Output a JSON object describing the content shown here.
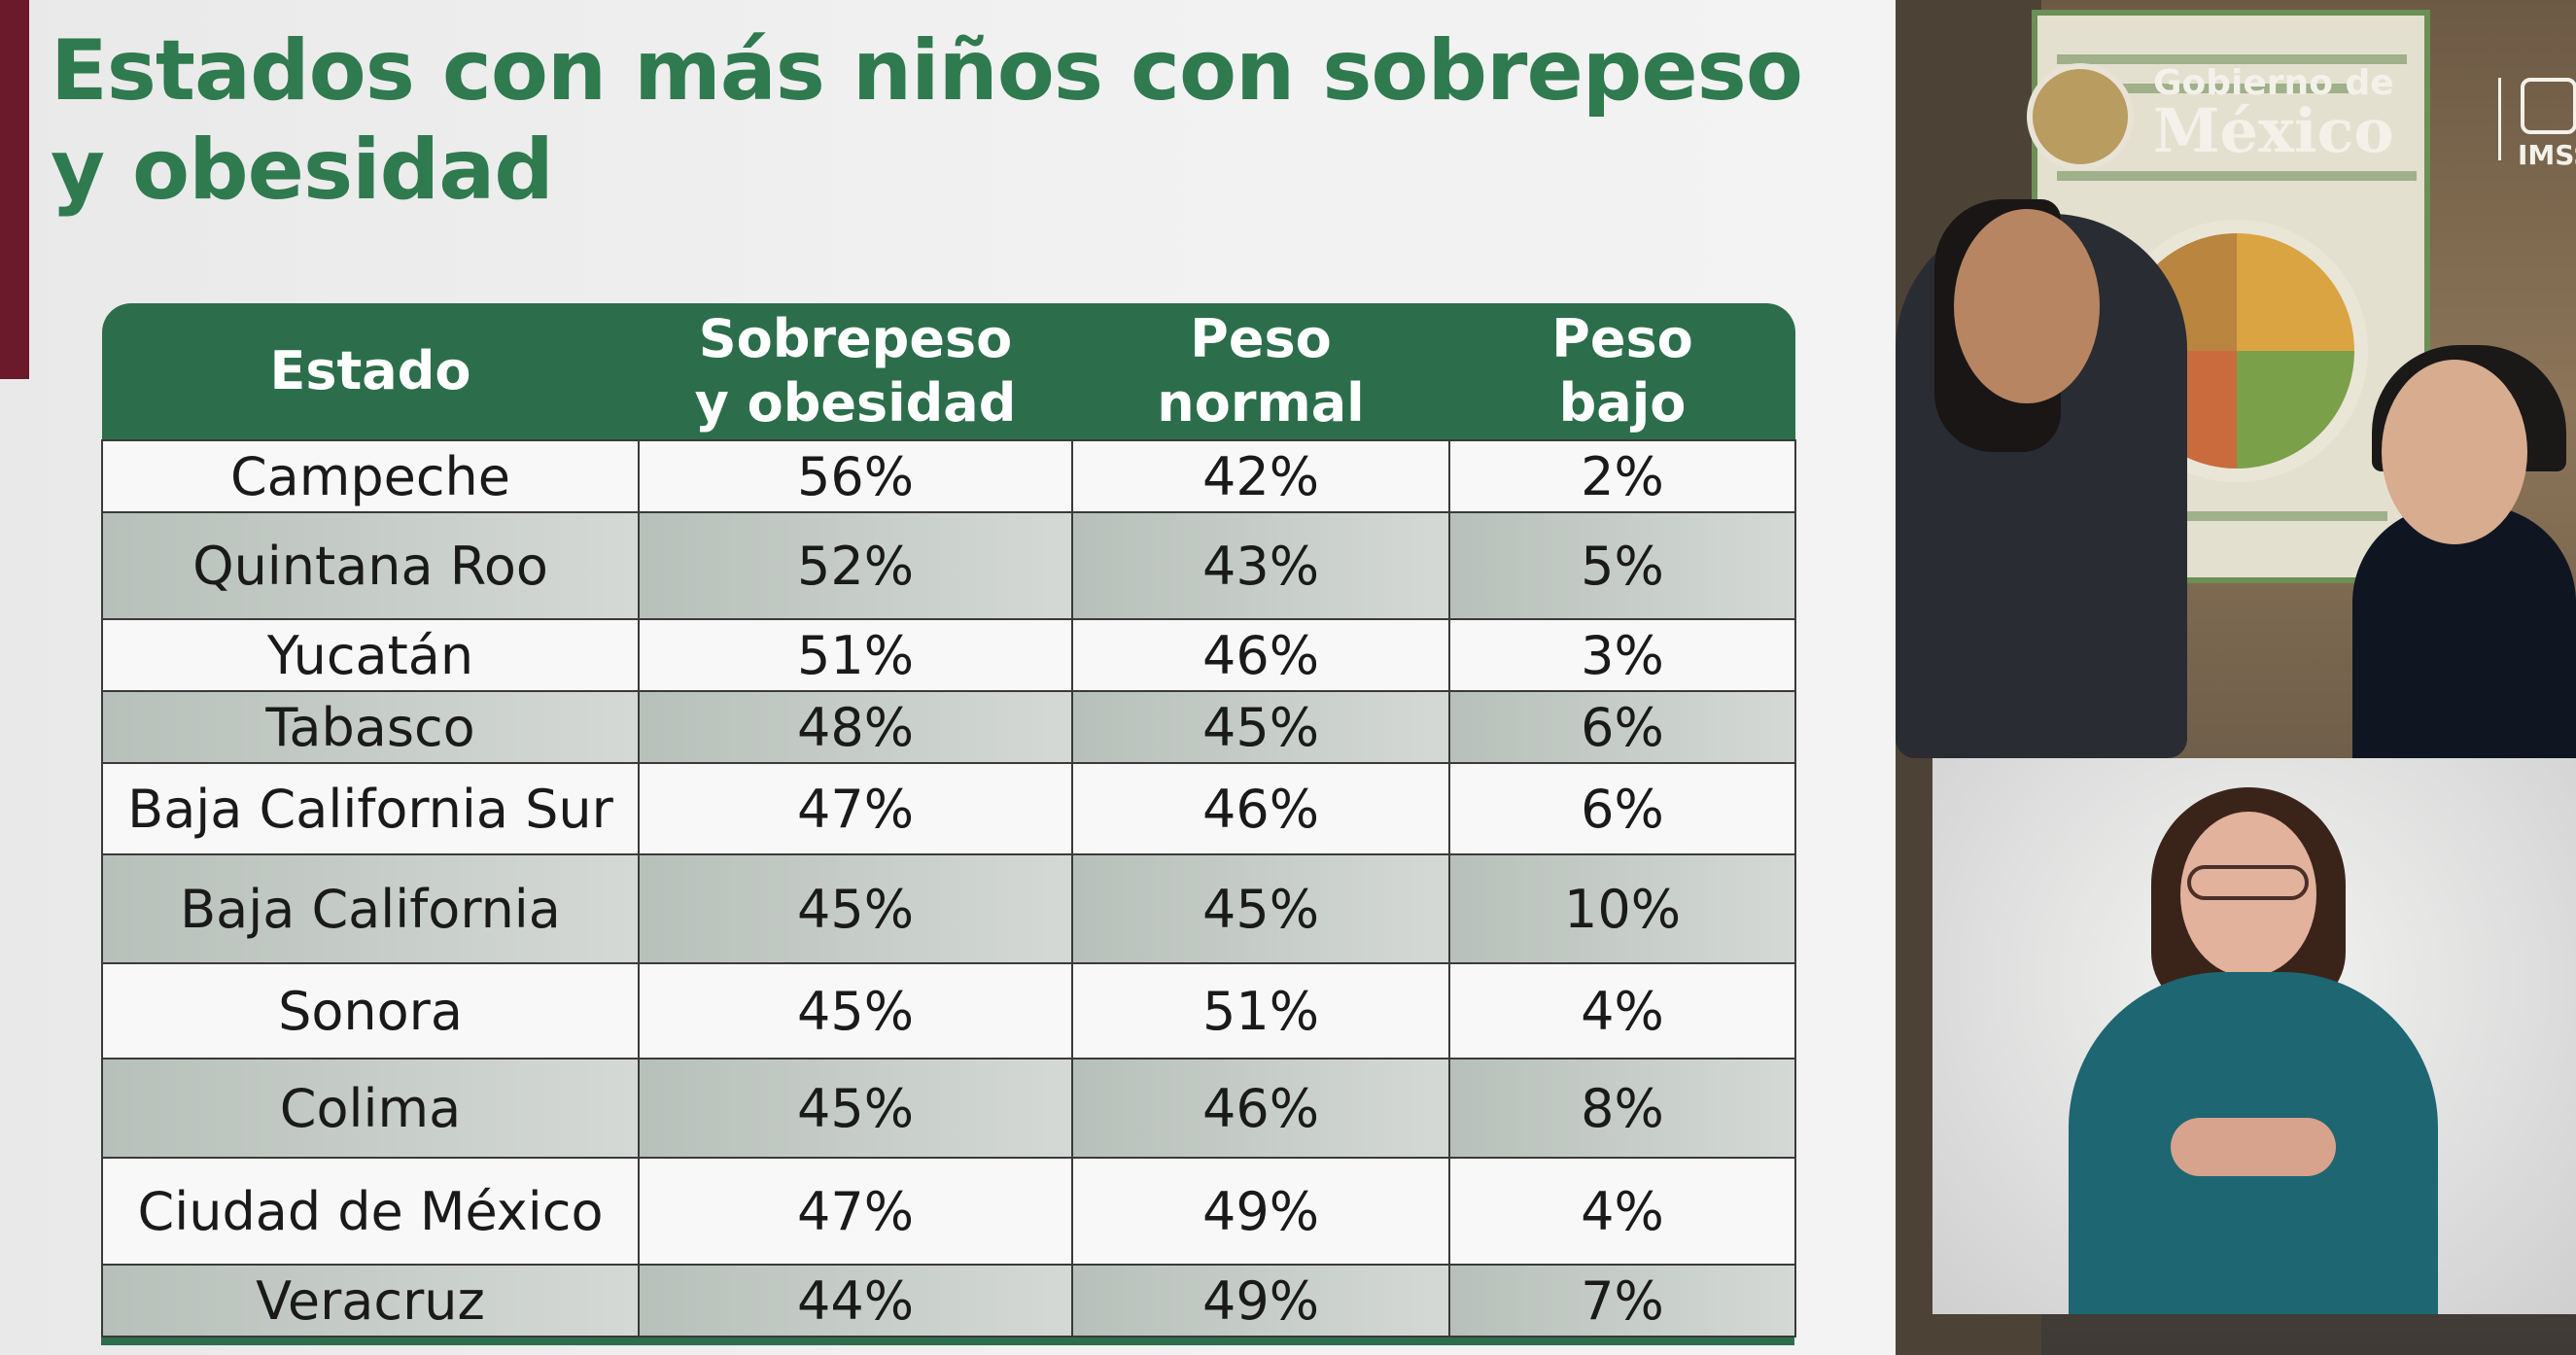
{
  "slide": {
    "title": "Estados con más niños con sobrepeso y obesidad"
  },
  "table": {
    "headers": [
      "Estado",
      "Sobrepeso\ny obesidad",
      "Peso\nnormal",
      "Peso\nbajo"
    ],
    "rows": [
      [
        "Campeche",
        "56%",
        "42%",
        "2%"
      ],
      [
        "Quintana Roo",
        "52%",
        "43%",
        "5%"
      ],
      [
        "Yucatán",
        "51%",
        "46%",
        "3%"
      ],
      [
        "Tabasco",
        "48%",
        "45%",
        "6%"
      ],
      [
        "Baja California Sur",
        "47%",
        "46%",
        "6%"
      ],
      [
        "Baja California",
        "45%",
        "45%",
        "10%"
      ],
      [
        "Sonora",
        "45%",
        "51%",
        "4%"
      ],
      [
        "Colima",
        "45%",
        "46%",
        "8%"
      ],
      [
        "Ciudad de México",
        "47%",
        "49%",
        "4%"
      ],
      [
        "Veracruz",
        "44%",
        "49%",
        "7%"
      ]
    ]
  },
  "logo": {
    "line1": "Gobierno de",
    "line2": "México",
    "imss": "IMSS"
  },
  "colors": {
    "title_green": "#2f7a4f",
    "header_green": "#2c6e4b",
    "maroon": "#6a1a2b"
  }
}
